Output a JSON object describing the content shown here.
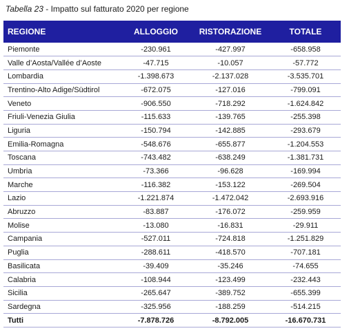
{
  "caption": {
    "label": "Tabella 23",
    "title": " - Impatto sul fatturato 2020 per regione"
  },
  "table": {
    "header_color": "#1f1fa0",
    "columns": [
      "REGIONE",
      "ALLOGGIO",
      "RISTORAZIONE",
      "TOTALE"
    ],
    "rows": [
      {
        "region": "Piemonte",
        "alloggio": "-230.961",
        "ristorazione": "-427.997",
        "totale": "-658.958"
      },
      {
        "region": "Valle d’Aosta/Vallée d’Aoste",
        "alloggio": "-47.715",
        "ristorazione": "-10.057",
        "totale": "-57.772"
      },
      {
        "region": "Lombardia",
        "alloggio": "-1.398.673",
        "ristorazione": "-2.137.028",
        "totale": "-3.535.701"
      },
      {
        "region": "Trentino-Alto Adige/Südtirol",
        "alloggio": "-672.075",
        "ristorazione": "-127.016",
        "totale": "-799.091"
      },
      {
        "region": "Veneto",
        "alloggio": "-906.550",
        "ristorazione": "-718.292",
        "totale": "-1.624.842"
      },
      {
        "region": "Friuli-Venezia Giulia",
        "alloggio": "-115.633",
        "ristorazione": "-139.765",
        "totale": "-255.398"
      },
      {
        "region": "Liguria",
        "alloggio": "-150.794",
        "ristorazione": "-142.885",
        "totale": "-293.679"
      },
      {
        "region": "Emilia-Romagna",
        "alloggio": "-548.676",
        "ristorazione": "-655.877",
        "totale": "-1.204.553"
      },
      {
        "region": "Toscana",
        "alloggio": "-743.482",
        "ristorazione": "-638.249",
        "totale": "-1.381.731"
      },
      {
        "region": "Umbria",
        "alloggio": "-73.366",
        "ristorazione": "-96.628",
        "totale": "-169.994"
      },
      {
        "region": "Marche",
        "alloggio": "-116.382",
        "ristorazione": "-153.122",
        "totale": "-269.504"
      },
      {
        "region": "Lazio",
        "alloggio": "-1.221.874",
        "ristorazione": "-1.472.042",
        "totale": "-2.693.916"
      },
      {
        "region": "Abruzzo",
        "alloggio": "-83.887",
        "ristorazione": "-176.072",
        "totale": "-259.959"
      },
      {
        "region": "Molise",
        "alloggio": "-13.080",
        "ristorazione": "-16.831",
        "totale": "-29.911"
      },
      {
        "region": "Campania",
        "alloggio": "-527.011",
        "ristorazione": "-724.818",
        "totale": "-1.251.829"
      },
      {
        "region": "Puglia",
        "alloggio": "-288.611",
        "ristorazione": "-418.570",
        "totale": "-707.181"
      },
      {
        "region": "Basilicata",
        "alloggio": "-39.409",
        "ristorazione": "-35.246",
        "totale": "-74.655"
      },
      {
        "region": "Calabria",
        "alloggio": "-108.944",
        "ristorazione": "-123.499",
        "totale": "-232.443"
      },
      {
        "region": "Sicilia",
        "alloggio": "-265.647",
        "ristorazione": "-389.752",
        "totale": "-655.399"
      },
      {
        "region": "Sardegna",
        "alloggio": "-325.956",
        "ristorazione": "-188.259",
        "totale": "-514.215"
      }
    ],
    "total": {
      "region": "Tutti",
      "alloggio": "-7.878.726",
      "ristorazione": "-8.792.005",
      "totale": "-16.670.731"
    }
  }
}
